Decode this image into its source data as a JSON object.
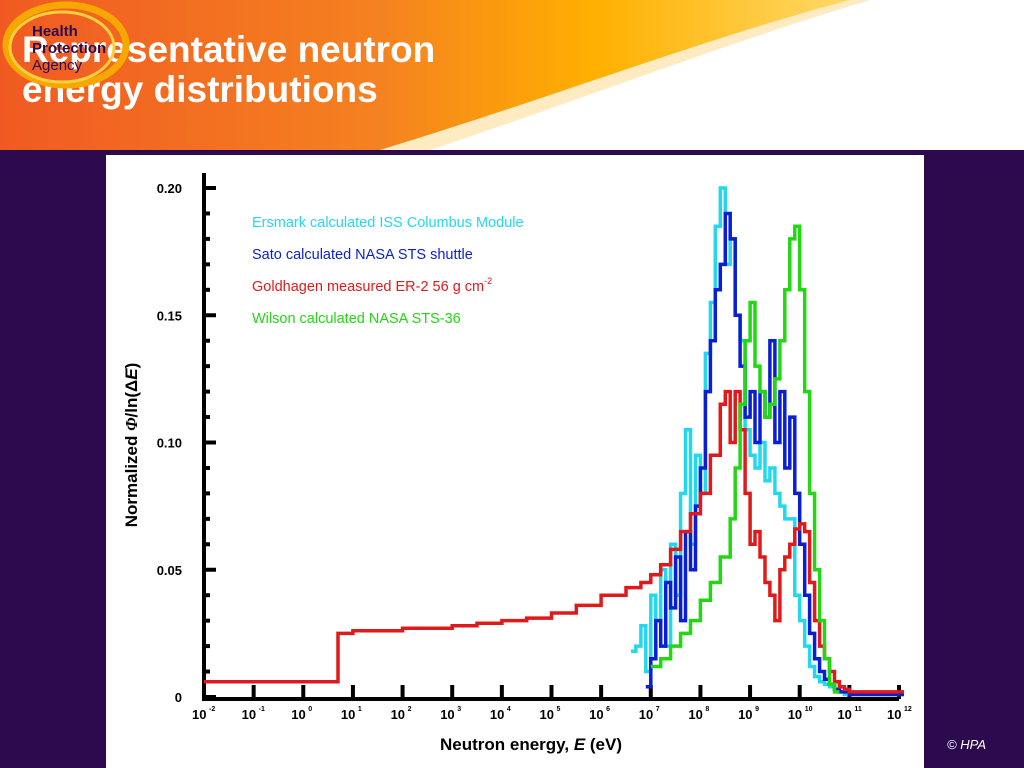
{
  "slide": {
    "title_line1": "Representative neutron",
    "title_line2": "energy distributions",
    "copyright": "© HPA"
  },
  "logo": {
    "line1": "Health",
    "line2": "Protection",
    "line3": "Agency",
    "text_color": "#2d0a4e",
    "ring_color": "#f7a800"
  },
  "colors": {
    "background": "#2d0a4e",
    "header_orange": "#f37021",
    "header_yellow": "#ffb400"
  },
  "chart_data": {
    "type": "line",
    "xlabel": "Neutron energy, E (eV)",
    "ylabel_prefix": "Normalized ",
    "ylabel_phi": "Φ",
    "ylabel_mid": "/ln(Δ",
    "ylabel_E": "E",
    "ylabel_suffix": ")",
    "xlabel_prefix": "Neutron energy, ",
    "xlabel_italic": "E",
    "xlabel_suffix": " (eV)",
    "xscale": "log",
    "xlim_exp": [
      -2,
      12
    ],
    "ylim": [
      0,
      0.2
    ],
    "yticks": [
      0,
      0.05,
      0.1,
      0.15,
      0.2
    ],
    "ytick_labels": [
      "0",
      "0.05",
      "0.10",
      "0.15",
      "0.20"
    ],
    "xtick_base": "10",
    "xtick_exponents": [
      "-2",
      "-1",
      "0",
      "1",
      "2",
      "3",
      "4",
      "5",
      "6",
      "7",
      "8",
      "9",
      "10",
      "11",
      "12"
    ],
    "legend_position": "top-left",
    "series": [
      {
        "name": "Ersmark calculated ISS Columbus Module",
        "color": "#22d8f0",
        "step": true,
        "logE": [
          6.6,
          6.7,
          6.8,
          6.9,
          7.0,
          7.1,
          7.2,
          7.3,
          7.4,
          7.5,
          7.6,
          7.7,
          7.8,
          7.9,
          8.0,
          8.1,
          8.2,
          8.3,
          8.4,
          8.5,
          8.6,
          8.7,
          8.8,
          8.9,
          9.0,
          9.1,
          9.2,
          9.3,
          9.4,
          9.5,
          9.6,
          9.7,
          9.8,
          9.9,
          10.0,
          10.1,
          10.2,
          10.3,
          10.4,
          10.5,
          10.6,
          10.7,
          10.8,
          10.9,
          11.0,
          11.2,
          11.5,
          12.0
        ],
        "y": [
          0.018,
          0.02,
          0.028,
          0.01,
          0.04,
          0.03,
          0.05,
          0.02,
          0.06,
          0.04,
          0.08,
          0.105,
          0.06,
          0.095,
          0.08,
          0.135,
          0.155,
          0.185,
          0.2,
          0.17,
          0.18,
          0.15,
          0.14,
          0.105,
          0.095,
          0.09,
          0.1,
          0.085,
          0.09,
          0.08,
          0.075,
          0.07,
          0.07,
          0.04,
          0.03,
          0.02,
          0.012,
          0.008,
          0.006,
          0.005,
          0.004,
          0.003,
          0.002,
          0.001,
          0.001,
          0.001,
          0.001,
          0.001
        ]
      },
      {
        "name": "Sato calculated NASA STS shuttle",
        "color": "#0a1fd0",
        "step": true,
        "logE": [
          6.9,
          7.0,
          7.1,
          7.2,
          7.3,
          7.4,
          7.5,
          7.6,
          7.7,
          7.8,
          7.9,
          8.0,
          8.1,
          8.2,
          8.3,
          8.4,
          8.5,
          8.6,
          8.7,
          8.8,
          8.9,
          9.0,
          9.1,
          9.2,
          9.3,
          9.4,
          9.5,
          9.6,
          9.7,
          9.8,
          9.9,
          10.0,
          10.1,
          10.2,
          10.3,
          10.4,
          10.5,
          10.6,
          10.7,
          10.8,
          10.9,
          11.0,
          11.2,
          11.5,
          12.0
        ],
        "y": [
          0.004,
          0.015,
          0.03,
          0.02,
          0.045,
          0.035,
          0.055,
          0.03,
          0.065,
          0.05,
          0.075,
          0.09,
          0.12,
          0.14,
          0.16,
          0.17,
          0.19,
          0.18,
          0.15,
          0.13,
          0.11,
          0.12,
          0.1,
          0.12,
          0.11,
          0.14,
          0.1,
          0.12,
          0.09,
          0.11,
          0.08,
          0.06,
          0.04,
          0.025,
          0.015,
          0.01,
          0.007,
          0.005,
          0.003,
          0.002,
          0.002,
          0.001,
          0.001,
          0.001,
          0.001
        ]
      },
      {
        "name": "Goldhagen measured ER-2 56 g cm",
        "name_sup": "-2",
        "color": "#e01a1a",
        "step": true,
        "logE": [
          -2,
          0.5,
          0.7,
          1.0,
          1.5,
          2.0,
          2.5,
          3.0,
          3.5,
          4.0,
          4.5,
          5.0,
          5.5,
          6.0,
          6.5,
          6.8,
          7.0,
          7.2,
          7.4,
          7.6,
          7.8,
          8.0,
          8.2,
          8.4,
          8.5,
          8.6,
          8.7,
          8.8,
          8.9,
          9.0,
          9.1,
          9.2,
          9.3,
          9.4,
          9.5,
          9.6,
          9.7,
          9.8,
          9.9,
          10.0,
          10.1,
          10.2,
          10.3,
          10.4,
          10.5,
          10.6,
          10.7,
          10.8,
          10.9,
          11.0,
          12.0
        ],
        "y": [
          0.006,
          0.006,
          0.025,
          0.026,
          0.026,
          0.027,
          0.027,
          0.028,
          0.029,
          0.03,
          0.031,
          0.033,
          0.036,
          0.04,
          0.043,
          0.045,
          0.048,
          0.052,
          0.058,
          0.065,
          0.072,
          0.08,
          0.095,
          0.115,
          0.12,
          0.1,
          0.12,
          0.105,
          0.08,
          0.06,
          0.065,
          0.055,
          0.045,
          0.04,
          0.03,
          0.05,
          0.055,
          0.06,
          0.066,
          0.068,
          0.065,
          0.045,
          0.03,
          0.02,
          0.015,
          0.01,
          0.006,
          0.004,
          0.003,
          0.002,
          0.002
        ]
      },
      {
        "name": "Wilson calculated NASA STS-36",
        "color": "#22d812",
        "step": true,
        "logE": [
          7.0,
          7.2,
          7.4,
          7.6,
          7.8,
          8.0,
          8.2,
          8.4,
          8.6,
          8.7,
          8.8,
          8.9,
          9.0,
          9.1,
          9.2,
          9.3,
          9.4,
          9.5,
          9.6,
          9.7,
          9.8,
          9.9,
          10.0,
          10.1,
          10.2,
          10.3,
          10.4,
          10.5,
          10.6,
          10.7
        ],
        "y": [
          0.012,
          0.015,
          0.02,
          0.025,
          0.03,
          0.038,
          0.045,
          0.055,
          0.07,
          0.09,
          0.115,
          0.14,
          0.155,
          0.13,
          0.12,
          0.11,
          0.115,
          0.125,
          0.14,
          0.16,
          0.18,
          0.185,
          0.16,
          0.12,
          0.08,
          0.05,
          0.03,
          0.015,
          0.005,
          0.002
        ]
      }
    ]
  }
}
